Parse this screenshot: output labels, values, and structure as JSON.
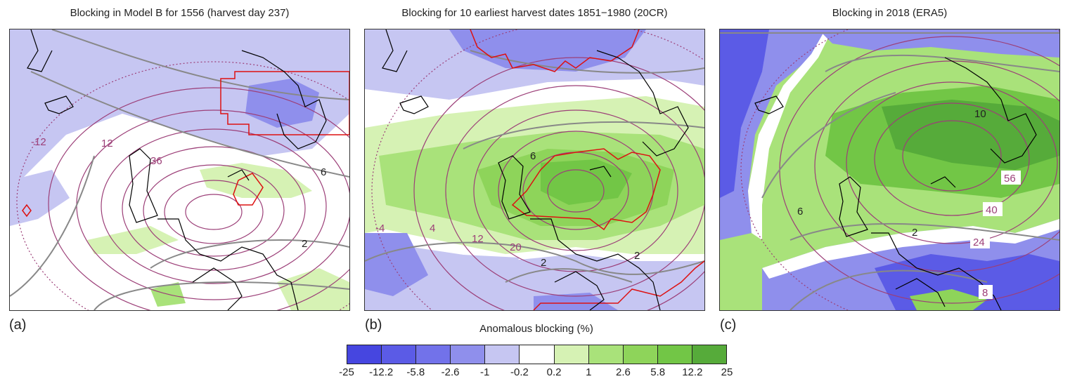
{
  "panels": [
    {
      "id": "a",
      "title": "Blocking in Model B for 1556 (harvest day 237)",
      "label": "(a)",
      "contour_labels_purple": [
        "-12",
        "12",
        "36"
      ],
      "contour_labels_gray": [
        "6",
        "2"
      ]
    },
    {
      "id": "b",
      "title": "Blocking for 10 earliest harvest dates 1851−1980 (20CR)",
      "label": "(b)",
      "contour_labels_purple": [
        "-4",
        "4",
        "12",
        "20"
      ],
      "contour_labels_gray": [
        "6",
        "2",
        "2"
      ]
    },
    {
      "id": "c",
      "title": "Blocking in 2018 (ERA5)",
      "label": "(c)",
      "contour_labels_purple": [
        "56",
        "40",
        "24",
        "8"
      ],
      "contour_labels_gray": [
        "10",
        "6",
        "2"
      ]
    }
  ],
  "colorbar": {
    "title": "Anomalous blocking (%)",
    "ticks": [
      "-25",
      "-12.2",
      "-5.8",
      "-2.6",
      "-1",
      "-0.2",
      "0.2",
      "1",
      "2.6",
      "5.8",
      "12.2",
      "25"
    ],
    "colors": [
      "#4646e0",
      "#5b5be6",
      "#7272ea",
      "#8f8fec",
      "#c6c6f2",
      "#ffffff",
      "#d6f2b4",
      "#a9e27a",
      "#8ed45a",
      "#72c646",
      "#56ab3a"
    ]
  },
  "colors": {
    "purple_contour": "#9c3f78",
    "gray_contour": "#888888",
    "red_outline": "#dd1111",
    "coastline": "#000000"
  }
}
